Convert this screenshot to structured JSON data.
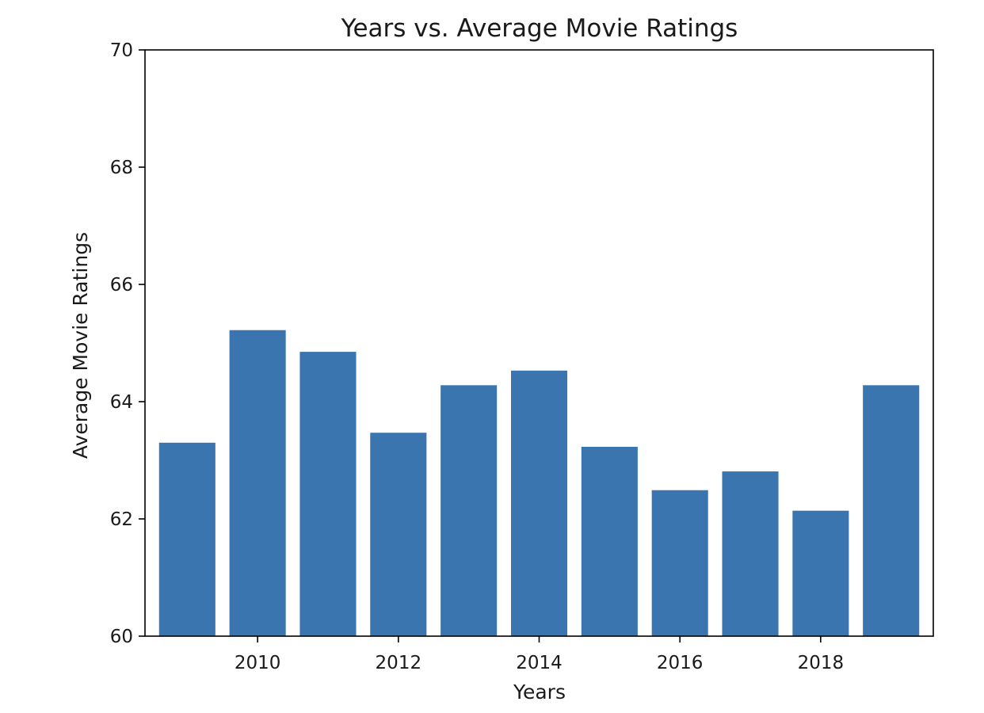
{
  "chart_data": {
    "type": "bar",
    "title": "Years vs. Average Movie Ratings",
    "xlabel": "Years",
    "ylabel": "Average Movie Ratings",
    "x": [
      2009,
      2010,
      2011,
      2012,
      2013,
      2014,
      2015,
      2016,
      2017,
      2018,
      2019
    ],
    "values": [
      63.3,
      65.22,
      64.85,
      63.47,
      64.28,
      64.53,
      63.23,
      62.49,
      62.81,
      62.14,
      64.28
    ],
    "ylim": [
      60,
      70
    ],
    "xlim": [
      2008.4,
      2019.6
    ],
    "xticks": [
      "2010",
      "2012",
      "2014",
      "2016",
      "2018"
    ],
    "yticks": [
      "60",
      "62",
      "64",
      "66",
      "68",
      "70"
    ],
    "bar_color": "#3a75af",
    "grid": false,
    "legend": "none"
  }
}
